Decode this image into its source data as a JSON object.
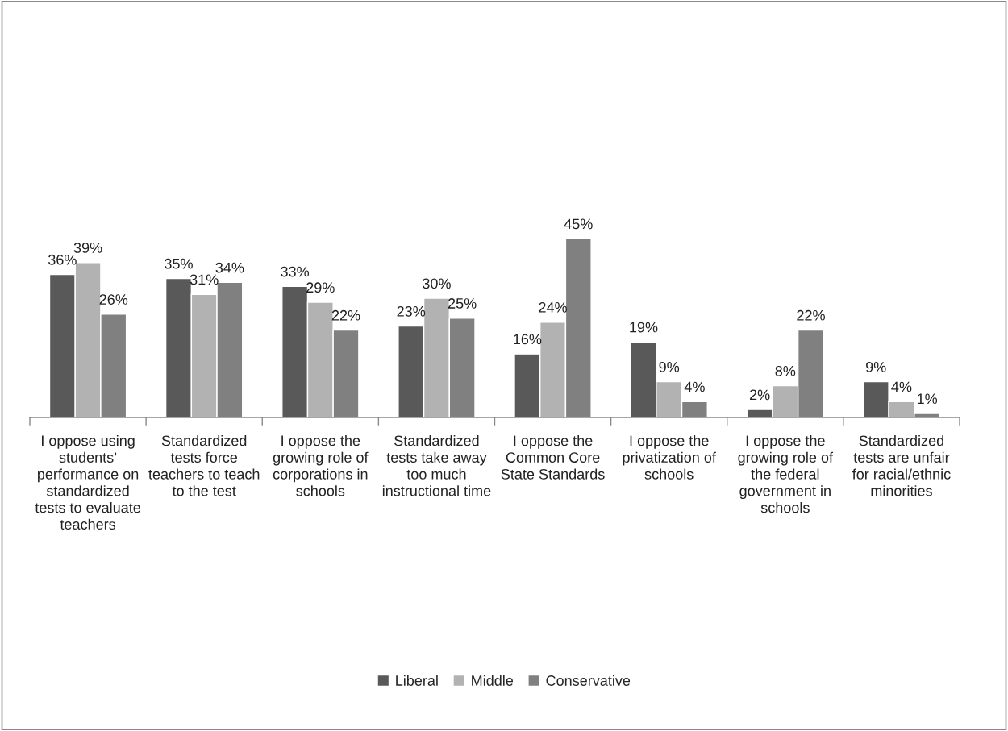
{
  "chart_data": {
    "type": "bar",
    "categories": [
      "I oppose using students’ performance on standardized tests to evaluate teachers",
      "Standardized tests force teachers to teach to the test",
      "I oppose the growing role of corporations in schools",
      "Standardized tests take away too much instructional time",
      "I oppose the Common Core State Standards",
      "I oppose the privatization of schools",
      "I oppose the growing role of the federal government in schools",
      "Standardized tests are unfair for racial/ethnic minorities"
    ],
    "series": [
      {
        "name": "Liberal",
        "color": "#595959",
        "values": [
          36,
          35,
          33,
          23,
          16,
          19,
          2,
          9
        ],
        "value_labels": [
          "36%",
          "35%",
          "33%",
          "23%",
          "16%",
          "19%",
          "2%",
          "9%"
        ]
      },
      {
        "name": "Middle",
        "color": "#b2b2b2",
        "values": [
          39,
          31,
          29,
          30,
          24,
          9,
          8,
          4
        ],
        "value_labels": [
          "39%",
          "31%",
          "29%",
          "30%",
          "24%",
          "9%",
          "8%",
          "4%"
        ]
      },
      {
        "name": "Conservative",
        "color": "#808080",
        "values": [
          26,
          34,
          22,
          25,
          45,
          4,
          22,
          1
        ],
        "value_labels": [
          "26%",
          "34%",
          "22%",
          "25%",
          "45%",
          "4%",
          "22%",
          "1%"
        ]
      }
    ],
    "legend": "bottom",
    "grid": false
  }
}
